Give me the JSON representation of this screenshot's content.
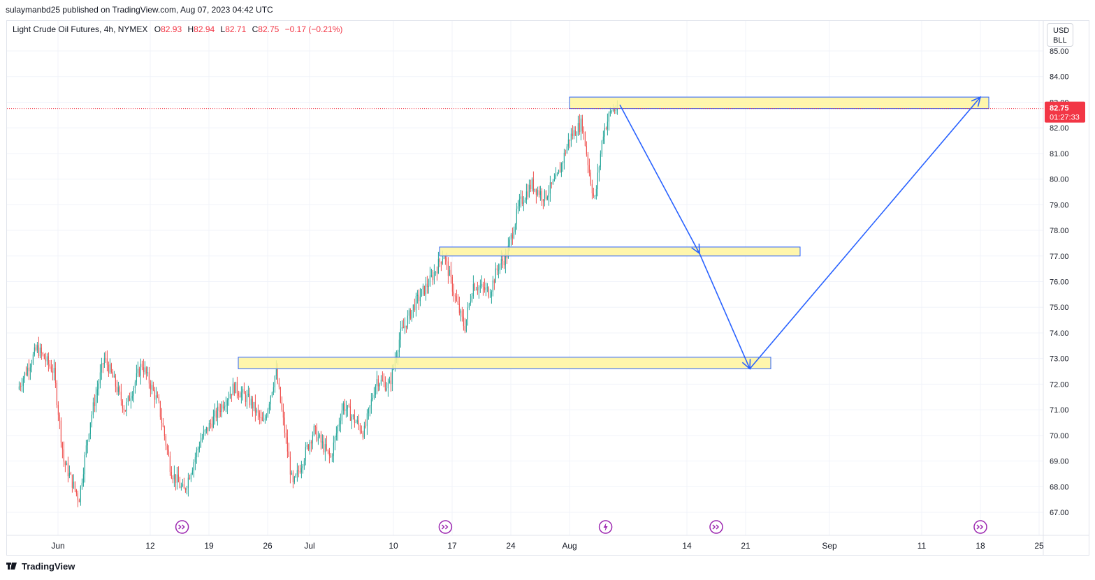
{
  "header": {
    "published": "sulaymanbd25 published on TradingView.com, Aug 07, 2023 04:42 UTC"
  },
  "legend": {
    "symbol": "Light Crude Oil Futures, 4h, NYMEX",
    "o_label": "O",
    "o_value": "82.93",
    "h_label": "H",
    "h_value": "82.94",
    "l_label": "L",
    "l_value": "82.71",
    "c_label": "C",
    "c_value": "82.75",
    "change": "−0.17 (−0.21%)"
  },
  "currency": {
    "line1": "USD",
    "line2": "BLL"
  },
  "price_badge": {
    "price": "82.75",
    "countdown": "01:27:33"
  },
  "footer": {
    "brand": "TradingView"
  },
  "colors": {
    "up": "#26a69a",
    "down": "#ef5350",
    "zone_fill": "#fff59d",
    "zone_border": "#2962ff",
    "arrow": "#2962ff",
    "badge": "#f23645",
    "event": "#9c27b0"
  },
  "chart_data": {
    "type": "candlestick",
    "x_ticks": [
      "Jun",
      "12",
      "19",
      "26",
      "Jul",
      "10",
      "17",
      "24",
      "Aug",
      "14",
      "21",
      "Sep",
      "11",
      "18",
      "25"
    ],
    "x_tick_days": [
      1,
      12,
      19,
      26,
      31,
      41,
      48,
      55,
      62,
      76,
      83,
      93,
      104,
      111,
      118
    ],
    "y_ticks": [
      "67.00",
      "68.00",
      "69.00",
      "70.00",
      "71.00",
      "72.00",
      "73.00",
      "74.00",
      "75.00",
      "76.00",
      "77.00",
      "78.00",
      "79.00",
      "80.00",
      "81.00",
      "82.00",
      "83.00",
      "84.00",
      "85.00"
    ],
    "ylim": [
      66.2,
      85.4
    ],
    "last_price": 82.75,
    "price_path": [
      [
        -3.8,
        71.8
      ],
      [
        -1.5,
        73.4
      ],
      [
        0.5,
        72.5
      ],
      [
        1.7,
        69.0
      ],
      [
        3.5,
        67.5
      ],
      [
        4.8,
        70.5
      ],
      [
        6.5,
        73.0
      ],
      [
        7.0,
        72.7
      ],
      [
        9.0,
        71.0
      ],
      [
        11.0,
        72.8
      ],
      [
        13.0,
        71.2
      ],
      [
        14.5,
        68.6
      ],
      [
        16.0,
        67.8
      ],
      [
        18.0,
        69.8
      ],
      [
        20.0,
        70.9
      ],
      [
        22.0,
        71.9
      ],
      [
        24.0,
        71.3
      ],
      [
        25.5,
        70.4
      ],
      [
        27.0,
        72.5
      ],
      [
        29.0,
        68.0
      ],
      [
        31.5,
        70.2
      ],
      [
        33.5,
        69.1
      ],
      [
        35.0,
        71.2
      ],
      [
        37.5,
        70.1
      ],
      [
        39.0,
        72.2
      ],
      [
        40.5,
        71.9
      ],
      [
        41.8,
        73.9
      ],
      [
        43.5,
        75.1
      ],
      [
        45.5,
        76.1
      ],
      [
        47.0,
        77.1
      ],
      [
        48.5,
        75.2
      ],
      [
        49.5,
        74.2
      ],
      [
        50.5,
        75.9
      ],
      [
        52.5,
        75.6
      ],
      [
        53.5,
        76.6
      ],
      [
        54.5,
        77.0
      ],
      [
        56.0,
        79.0
      ],
      [
        57.5,
        79.8
      ],
      [
        59.0,
        79.3
      ],
      [
        60.5,
        80.0
      ],
      [
        62.0,
        81.6
      ],
      [
        63.5,
        82.2
      ],
      [
        64.5,
        80.0
      ],
      [
        65.0,
        79.1
      ],
      [
        66.0,
        81.8
      ],
      [
        67.0,
        82.7
      ],
      [
        67.7,
        82.75
      ]
    ],
    "zones": [
      {
        "start_day": 62.0,
        "end_day": 112.0,
        "low": 82.75,
        "high": 83.2
      },
      {
        "start_day": 46.5,
        "end_day": 89.5,
        "low": 77.0,
        "high": 77.35
      },
      {
        "start_day": 22.5,
        "end_day": 86.0,
        "low": 72.6,
        "high": 73.05
      }
    ],
    "projection": [
      [
        68.0,
        82.9
      ],
      [
        77.5,
        77.1
      ],
      [
        83.5,
        72.6
      ],
      [
        111.0,
        83.2
      ]
    ],
    "events": [
      {
        "day": 15.8,
        "icon": "arrow-forward"
      },
      {
        "day": 47.2,
        "icon": "arrow-forward"
      },
      {
        "day": 66.3,
        "icon": "lightning"
      },
      {
        "day": 79.5,
        "icon": "arrow-forward"
      },
      {
        "day": 111.0,
        "icon": "arrow-forward"
      }
    ]
  }
}
